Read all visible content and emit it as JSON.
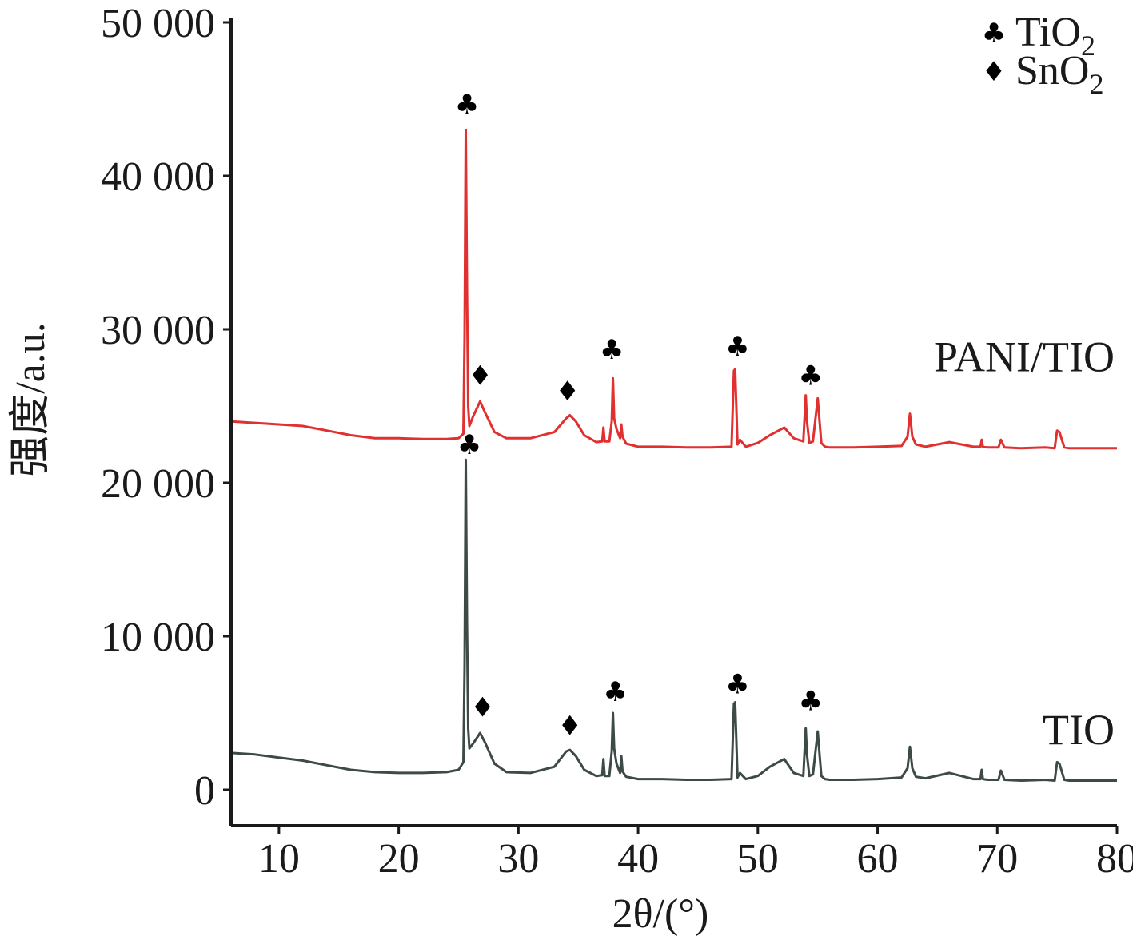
{
  "chart_data": {
    "type": "line",
    "xlabel": "2θ/(°)",
    "ylabel": "强度/a.u.",
    "xlim": [
      6,
      80
    ],
    "ylim": [
      0,
      50000
    ],
    "x_ticks": [
      10,
      20,
      30,
      40,
      50,
      60,
      70,
      80
    ],
    "x_tick_labels": [
      "10",
      "20",
      "30",
      "40",
      "50",
      "60",
      "70",
      "80"
    ],
    "y_ticks": [
      0,
      10000,
      20000,
      30000,
      40000,
      50000
    ],
    "y_tick_labels": [
      "0",
      "10 000",
      "20 000",
      "30 000",
      "40 000",
      "50 000"
    ],
    "legend": {
      "position": "top-right",
      "entries": [
        {
          "symbol": "♣",
          "label": "TiO",
          "subscript": "2"
        },
        {
          "symbol": "♦",
          "label": "SnO",
          "subscript": "2"
        }
      ]
    },
    "series": [
      {
        "name": "PANI/TIO",
        "color": "#e03030",
        "x": [
          6,
          8,
          10,
          12,
          14,
          16,
          18,
          20,
          22,
          24,
          25,
          25.4,
          25.5,
          25.6,
          25.7,
          25.8,
          25.9,
          26.2,
          26.8,
          27.2,
          28,
          29,
          31,
          33,
          34,
          34.3,
          34.8,
          35.5,
          36.5,
          37.0,
          37.1,
          37.2,
          37.6,
          37.8,
          37.9,
          38.0,
          38.2,
          38.5,
          38.6,
          38.7,
          39,
          40,
          42,
          44,
          46,
          47.8,
          48.0,
          48.1,
          48.3,
          48.5,
          49,
          50,
          51,
          52.2,
          53,
          53.8,
          54.0,
          54.1,
          54.3,
          54.6,
          55.0,
          55.1,
          55.3,
          55.6,
          56,
          58,
          60,
          62,
          62.5,
          62.7,
          62.9,
          63.2,
          64,
          66,
          68,
          68.6,
          68.7,
          68.8,
          69.2,
          70.1,
          70.3,
          70.6,
          72,
          74,
          74.8,
          75,
          75.2,
          75.6,
          76,
          78,
          80
        ],
        "y": [
          24000,
          23900,
          23800,
          23700,
          23400,
          23100,
          22900,
          22900,
          22850,
          22850,
          22900,
          23200,
          29500,
          43000,
          32800,
          25000,
          23700,
          24300,
          25300,
          24600,
          23300,
          22900,
          22900,
          23300,
          24200,
          24400,
          24000,
          23100,
          22650,
          22700,
          23600,
          22700,
          22700,
          24000,
          26800,
          24200,
          23500,
          22900,
          23800,
          23000,
          22550,
          22350,
          22350,
          22300,
          22300,
          22350,
          27300,
          27400,
          22500,
          22800,
          22350,
          22600,
          23100,
          23600,
          22900,
          22700,
          25700,
          24000,
          22600,
          22700,
          25500,
          24500,
          22600,
          22350,
          22300,
          22300,
          22350,
          22400,
          23000,
          24500,
          23000,
          22500,
          22350,
          22650,
          22350,
          22350,
          22800,
          22350,
          22300,
          22300,
          22800,
          22300,
          22250,
          22300,
          22250,
          23400,
          23300,
          22300,
          22250,
          22250,
          22250
        ]
      },
      {
        "name": "TIO",
        "color": "#3d4a48",
        "x": [
          6,
          8,
          10,
          12,
          14,
          16,
          18,
          20,
          22,
          24,
          25,
          25.4,
          25.5,
          25.6,
          25.7,
          25.8,
          25.9,
          26.2,
          26.8,
          27.2,
          28,
          29,
          31,
          33,
          34,
          34.3,
          34.8,
          35.5,
          36.5,
          37.0,
          37.1,
          37.2,
          37.6,
          37.8,
          37.9,
          38.0,
          38.2,
          38.5,
          38.6,
          38.7,
          39,
          40,
          42,
          44,
          46,
          47.8,
          48.0,
          48.1,
          48.3,
          48.5,
          49,
          50,
          51,
          52.2,
          53,
          53.8,
          54.0,
          54.1,
          54.3,
          54.6,
          55.0,
          55.1,
          55.3,
          55.6,
          56,
          58,
          60,
          62,
          62.5,
          62.7,
          62.9,
          63.2,
          64,
          66,
          68,
          68.6,
          68.7,
          68.8,
          69.2,
          70.1,
          70.3,
          70.6,
          72,
          74,
          74.8,
          75,
          75.2,
          75.6,
          76,
          78,
          80
        ],
        "y": [
          2400,
          2300,
          2100,
          1900,
          1600,
          1300,
          1150,
          1100,
          1100,
          1150,
          1300,
          1800,
          8000,
          21500,
          11000,
          4000,
          2700,
          3000,
          3700,
          3100,
          1700,
          1150,
          1100,
          1500,
          2500,
          2600,
          2200,
          1300,
          900,
          950,
          2000,
          900,
          900,
          2500,
          5000,
          2700,
          1700,
          1100,
          2200,
          1200,
          850,
          700,
          700,
          650,
          650,
          700,
          5600,
          5700,
          800,
          1100,
          700,
          900,
          1500,
          2000,
          1100,
          900,
          4000,
          2300,
          900,
          1000,
          3800,
          2800,
          900,
          700,
          650,
          650,
          700,
          800,
          1400,
          2800,
          1400,
          850,
          750,
          1100,
          700,
          700,
          1300,
          700,
          650,
          650,
          1250,
          650,
          600,
          650,
          600,
          1800,
          1700,
          650,
          600,
          600,
          600
        ]
      }
    ],
    "annotations": [
      {
        "text": "♣",
        "x": 25.7,
        "y": 44700,
        "series": "PANI/TIO"
      },
      {
        "text": "♦",
        "x": 26.8,
        "y": 27000,
        "series": "PANI/TIO"
      },
      {
        "text": "♦",
        "x": 34.1,
        "y": 26000,
        "series": "PANI/TIO"
      },
      {
        "text": "♣",
        "x": 37.8,
        "y": 28700,
        "series": "PANI/TIO"
      },
      {
        "text": "♣",
        "x": 48.3,
        "y": 28900,
        "series": "PANI/TIO"
      },
      {
        "text": "♣",
        "x": 54.4,
        "y": 27000,
        "series": "PANI/TIO"
      },
      {
        "text": "♣",
        "x": 25.9,
        "y": 22500,
        "series": "TIO"
      },
      {
        "text": "♦",
        "x": 27.0,
        "y": 5400,
        "series": "TIO"
      },
      {
        "text": "♦",
        "x": 34.3,
        "y": 4200,
        "series": "TIO"
      },
      {
        "text": "♣",
        "x": 38.1,
        "y": 6400,
        "series": "TIO"
      },
      {
        "text": "♣",
        "x": 48.3,
        "y": 6900,
        "series": "TIO"
      },
      {
        "text": "♣",
        "x": 54.4,
        "y": 5800,
        "series": "TIO"
      }
    ]
  }
}
